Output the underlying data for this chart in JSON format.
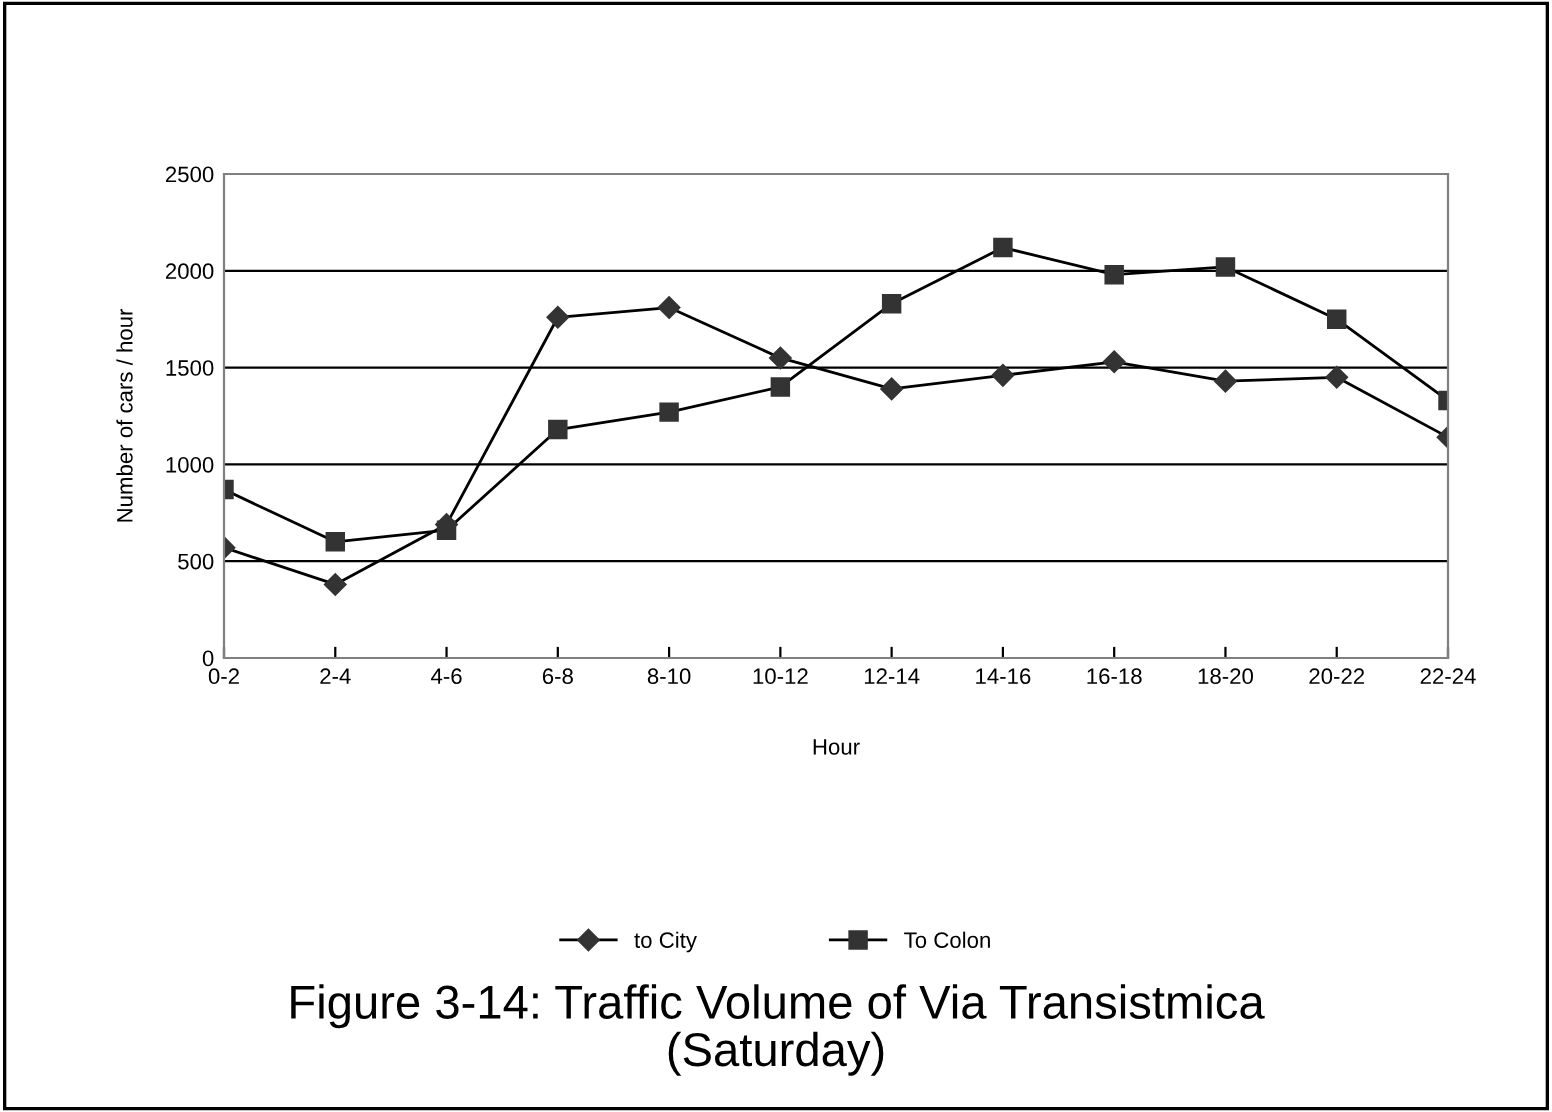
{
  "chart_data": {
    "type": "line",
    "title": "Figure 3-14: Traffic Volume of Via Transistmica\n(Saturday)",
    "xlabel": "Hour",
    "ylabel": "Number of cars / hour",
    "categories": [
      "0-2",
      "2-4",
      "4-6",
      "6-8",
      "8-10",
      "10-12",
      "12-14",
      "14-16",
      "16-18",
      "18-20",
      "20-22",
      "22-24"
    ],
    "series": [
      {
        "name": "to City",
        "color": "#000000",
        "marker": "diamond",
        "values": [
          570,
          380,
          690,
          1760,
          1810,
          1550,
          1390,
          1460,
          1530,
          1430,
          1450,
          1140
        ]
      },
      {
        "name": "To Colon",
        "color": "#000000",
        "marker": "square",
        "values": [
          870,
          600,
          660,
          1180,
          1270,
          1400,
          1830,
          2120,
          1980,
          2020,
          1750,
          1330
        ]
      }
    ],
    "ylim": [
      0,
      2500
    ],
    "yticks": [
      0,
      500,
      1000,
      1500,
      2000,
      2500
    ],
    "grid": "y",
    "legend": "bottom",
    "line_style": "solid"
  }
}
